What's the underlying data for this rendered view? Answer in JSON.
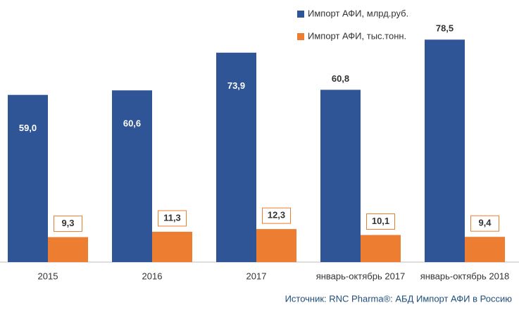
{
  "chart_data": {
    "type": "bar",
    "categories": [
      "2015",
      "2016",
      "2017",
      "январь-октябрь 2017",
      "январь-октябрь 2018"
    ],
    "series": [
      {
        "name": "Импорт АФИ, млрд.руб.",
        "color": "#2f5597",
        "values": [
          59.0,
          60.6,
          73.9,
          60.8,
          78.5
        ],
        "value_labels": [
          "59,0",
          "60,6",
          "73,9",
          "60,8",
          "78,5"
        ]
      },
      {
        "name": "Импорт АФИ, тыс.тонн.",
        "color": "#ed7d31",
        "axis": "y2",
        "values": [
          9.3,
          11.3,
          12.3,
          10.1,
          9.4
        ],
        "value_labels": [
          "9,3",
          "11,3",
          "12,3",
          "10,1",
          "9,4"
        ]
      }
    ],
    "ylim": [
      0,
      90
    ],
    "y2lim": [
      0,
      95
    ],
    "legend": "top-right",
    "source": "Источник: RNC Pharma®: АБД Импорт АФИ в Россию"
  }
}
